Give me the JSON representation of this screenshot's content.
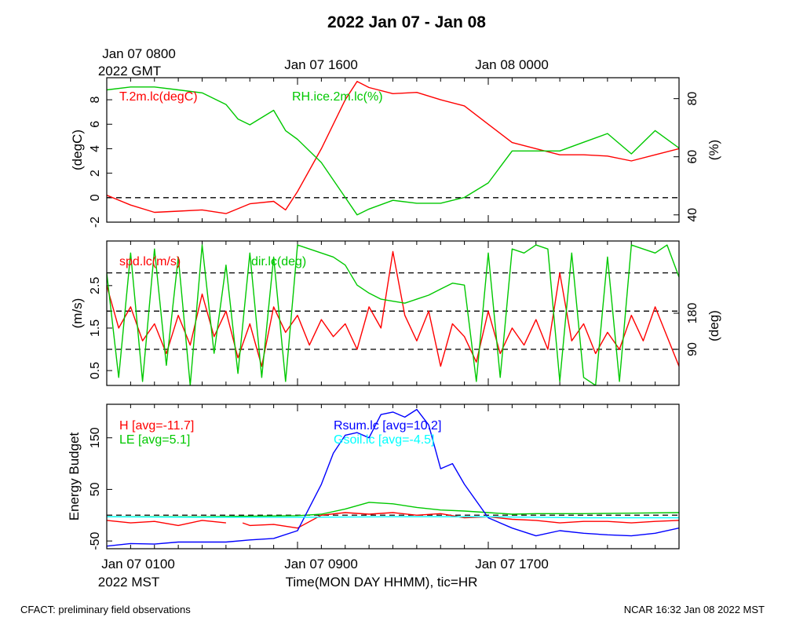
{
  "title": "2022 Jan 07 - Jan 08",
  "top_axis": {
    "labels": [
      "Jan 07 0800",
      "Jan 07 1600",
      "Jan 08 0000"
    ],
    "sublabel": "2022 GMT"
  },
  "bottom_axis": {
    "labels": [
      "Jan 07 0100",
      "Jan 07 0900",
      "Jan 07 1700"
    ],
    "sublabel": "2022 MST",
    "title": "Time(MON DAY HHMM), tic=HR"
  },
  "footer": {
    "left": "CFACT: preliminary field observations",
    "right": "NCAR 16:32 Jan 08 2022 MST"
  },
  "colors": {
    "red": "#ff0000",
    "green": "#00c800",
    "blue": "#0000ff",
    "cyan": "#00ffff"
  },
  "chart_data": [
    {
      "type": "line",
      "x_unit": "hours since Jan 07 0000 MST",
      "xlim": [
        0,
        24
      ],
      "ylabel": "(degC)",
      "ylim": [
        -2,
        9.8
      ],
      "yticks": [
        -2,
        0,
        2,
        4,
        6,
        8
      ],
      "y2label": "(%)",
      "y2lim": [
        37.5,
        87.2
      ],
      "y2ticks": [
        40,
        60,
        80
      ],
      "reference_lines": [
        0
      ],
      "series": [
        {
          "name": "T.2m.lc(degC)",
          "axis": "left",
          "color": "#ff0000",
          "x": [
            0,
            1,
            2,
            3,
            4,
            5,
            6,
            7,
            7.5,
            8,
            9,
            10,
            10.5,
            11,
            12,
            13,
            14,
            15,
            16,
            17,
            18,
            19,
            20,
            21,
            22,
            23,
            24
          ],
          "y": [
            0.2,
            -0.6,
            -1.2,
            -1.1,
            -1.0,
            -1.3,
            -0.5,
            -0.3,
            -1.0,
            0.5,
            4.0,
            8.0,
            9.5,
            9.0,
            8.5,
            8.6,
            8.0,
            7.5,
            6.0,
            4.5,
            4.0,
            3.5,
            3.5,
            3.4,
            3.0,
            3.5,
            4.0
          ]
        },
        {
          "name": "RH.ice.2m.lc(%)",
          "axis": "right",
          "color": "#00c800",
          "x": [
            0,
            1,
            2,
            3,
            4,
            5,
            5.5,
            6,
            7,
            7.5,
            8,
            9,
            10,
            10.5,
            11,
            12,
            13,
            14,
            15,
            16,
            17,
            18,
            19,
            20,
            21,
            22,
            23,
            24
          ],
          "y": [
            83,
            84,
            84,
            83,
            82,
            78,
            73,
            71,
            76,
            69,
            66,
            58,
            46,
            40,
            42,
            45,
            44,
            44,
            46,
            51,
            62,
            62,
            62,
            65,
            68,
            61,
            69,
            63
          ]
        }
      ]
    },
    {
      "type": "line",
      "x_unit": "hours since Jan 07 0000 MST",
      "xlim": [
        0,
        24
      ],
      "ylabel": "(m/s)",
      "ylim": [
        0.15,
        3.55
      ],
      "yticks": [
        0.5,
        1.5,
        2.5
      ],
      "y2label": "(deg)",
      "y2lim": [
        0,
        360
      ],
      "y2ticks": [
        90,
        180
      ],
      "reference_lines": [
        1.0,
        1.9,
        2.8
      ],
      "series": [
        {
          "name": "spd.lc(m/s)",
          "axis": "left",
          "color": "#ff0000",
          "x": [
            0,
            0.5,
            1,
            1.5,
            2,
            2.5,
            3,
            3.5,
            4,
            4.5,
            5,
            5.5,
            6,
            6.5,
            7,
            7.5,
            8,
            8.5,
            9,
            9.5,
            10,
            10.5,
            11,
            11.5,
            12,
            12.5,
            13,
            13.5,
            14,
            14.5,
            15,
            15.5,
            16,
            16.5,
            17,
            17.5,
            18,
            18.5,
            19,
            19.5,
            20,
            20.5,
            21,
            21.5,
            22,
            22.5,
            23,
            23.5,
            24
          ],
          "y": [
            2.5,
            1.5,
            2.0,
            1.2,
            1.6,
            0.9,
            1.8,
            1.1,
            2.3,
            1.3,
            1.9,
            0.8,
            1.6,
            0.6,
            2.0,
            1.4,
            1.8,
            1.1,
            1.7,
            1.3,
            1.6,
            1.0,
            2.0,
            1.5,
            3.3,
            1.8,
            1.2,
            1.9,
            0.6,
            1.6,
            1.3,
            0.7,
            1.9,
            0.9,
            1.5,
            1.1,
            1.7,
            1.0,
            2.8,
            1.2,
            1.6,
            0.9,
            1.4,
            1.0,
            1.8,
            1.2,
            2.0,
            1.3,
            0.6
          ]
        },
        {
          "name": "dir.lc(deg)",
          "axis": "right",
          "color": "#00c800",
          "x": [
            0,
            0.5,
            1,
            1.5,
            2,
            2.5,
            3,
            3.5,
            4,
            4.5,
            5,
            5.5,
            6,
            6.5,
            7,
            7.5,
            8,
            8.5,
            9,
            9.5,
            10,
            10.5,
            11,
            11.5,
            12,
            12.5,
            13,
            13.5,
            14,
            14.5,
            15,
            15.5,
            16,
            16.5,
            17,
            17.5,
            18,
            18.5,
            19,
            19.5,
            20,
            20.5,
            21,
            21.5,
            22,
            22.5,
            23,
            23.5,
            24
          ],
          "y": [
            280,
            20,
            330,
            10,
            340,
            50,
            320,
            0,
            350,
            80,
            300,
            30,
            330,
            20,
            320,
            10,
            350,
            340,
            330,
            320,
            300,
            250,
            230,
            215,
            210,
            205,
            215,
            225,
            240,
            255,
            250,
            10,
            330,
            20,
            340,
            330,
            350,
            340,
            10,
            330,
            20,
            0,
            320,
            10,
            350,
            340,
            330,
            350,
            270
          ]
        }
      ]
    },
    {
      "type": "line",
      "x_unit": "hours since Jan 07 0000 MST",
      "xlim": [
        0,
        24
      ],
      "ylabel": "Energy Budget",
      "ylim": [
        -65,
        215
      ],
      "yticks": [
        -50,
        50,
        150
      ],
      "reference_lines": [
        0
      ],
      "series": [
        {
          "name": "H",
          "label": "H [avg=-11.7]",
          "color": "#ff0000",
          "x": [
            0,
            1,
            2,
            3,
            4,
            5,
            5.3,
            5.7,
            6,
            7,
            8,
            9,
            10,
            11,
            12,
            13,
            14,
            15,
            16,
            17,
            18,
            19,
            20,
            21,
            22,
            23,
            24
          ],
          "y": [
            -10,
            -15,
            -12,
            -20,
            -10,
            -15,
            null,
            -15,
            -20,
            -18,
            -25,
            0,
            5,
            2,
            5,
            0,
            3,
            -5,
            -3,
            -8,
            -10,
            -15,
            -12,
            -12,
            -15,
            -12,
            -10
          ]
        },
        {
          "name": "LE",
          "label": "LE [avg=5.1]",
          "color": "#00c800",
          "x": [
            0,
            2,
            4,
            6,
            8,
            9,
            10,
            11,
            12,
            13,
            14,
            15,
            16,
            17,
            18,
            20,
            22,
            24
          ],
          "y": [
            -3,
            -3,
            -3,
            -2,
            -1,
            2,
            12,
            25,
            22,
            15,
            10,
            8,
            5,
            2,
            3,
            3,
            4,
            5
          ]
        },
        {
          "name": "Rsum.lc",
          "label": "Rsum.lc [avg=10.2]",
          "color": "#0000ff",
          "x": [
            0,
            1,
            2,
            3,
            4,
            5,
            6,
            7,
            8,
            9,
            9.5,
            10,
            10.5,
            11,
            11.5,
            12,
            12.5,
            13,
            13.5,
            14,
            14.5,
            15,
            16,
            17,
            18,
            19,
            20,
            21,
            22,
            23,
            24
          ],
          "y": [
            -60,
            -55,
            -56,
            -52,
            -52,
            -52,
            -48,
            -45,
            -30,
            60,
            120,
            155,
            160,
            150,
            195,
            200,
            190,
            205,
            175,
            90,
            100,
            60,
            -5,
            -25,
            -40,
            -30,
            -35,
            -38,
            -40,
            -35,
            -25
          ]
        },
        {
          "name": "Gsoil.lc",
          "label": "Gsoil.lc [avg=-4.5]",
          "color": "#00ffff",
          "x": [
            0,
            4,
            8,
            12,
            16,
            20,
            24
          ],
          "y": [
            -3,
            -4,
            -4,
            -3,
            -3,
            -5,
            -5
          ]
        }
      ]
    }
  ]
}
